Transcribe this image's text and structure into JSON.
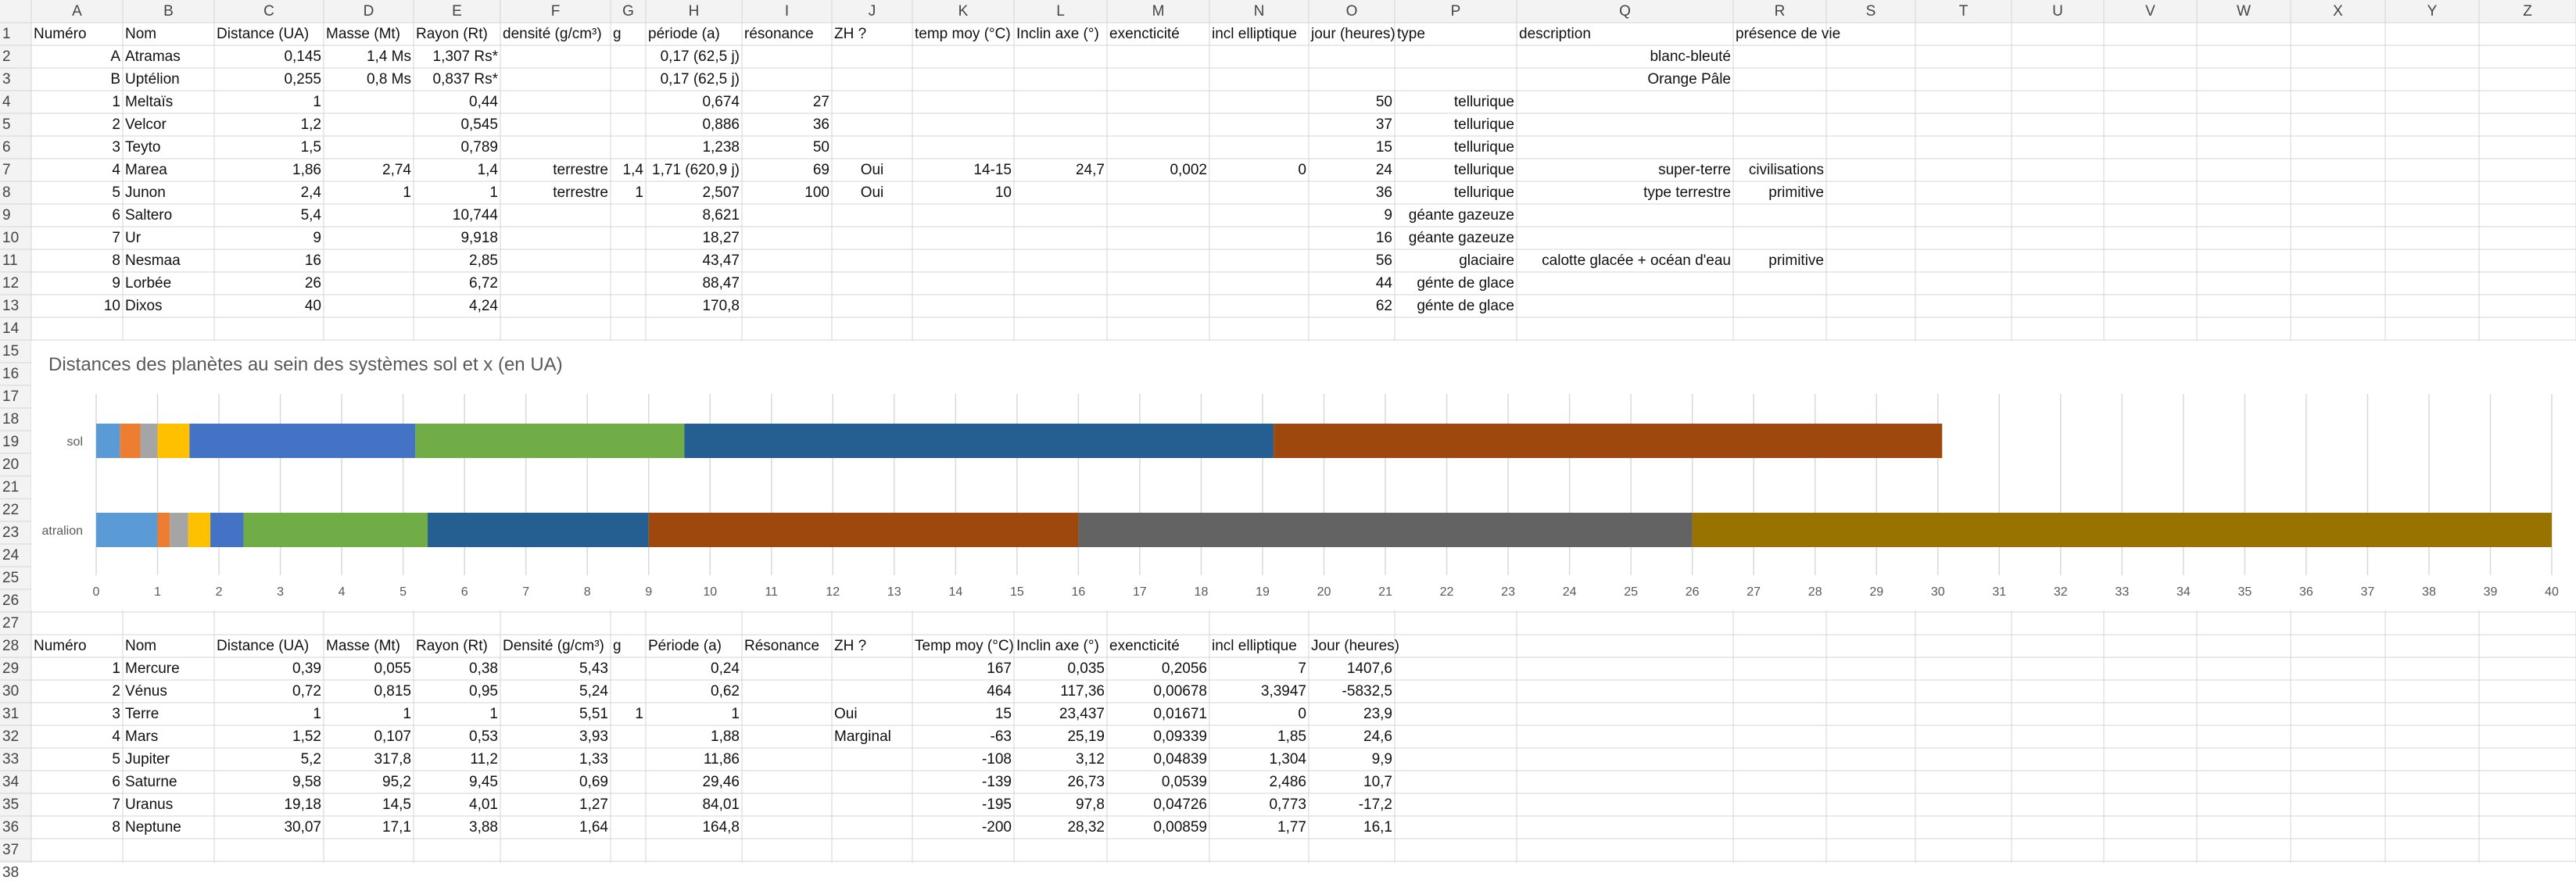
{
  "columns": [
    "A",
    "B",
    "C",
    "D",
    "E",
    "F",
    "G",
    "H",
    "I",
    "J",
    "K",
    "L",
    "M",
    "N",
    "O",
    "P",
    "Q",
    "R",
    "S",
    "T",
    "U",
    "V",
    "W",
    "X",
    "Y",
    "Z"
  ],
  "row_count": 38,
  "cells": [
    {
      "ref": "A1",
      "v": "Numéro",
      "a": "l"
    },
    {
      "ref": "B1",
      "v": "Nom",
      "a": "l"
    },
    {
      "ref": "C1",
      "v": "Distance (UA)",
      "a": "l"
    },
    {
      "ref": "D1",
      "v": "Masse (Mt)",
      "a": "l"
    },
    {
      "ref": "E1",
      "v": "Rayon (Rt)",
      "a": "l"
    },
    {
      "ref": "F1",
      "v": "densité (g/cm³)",
      "a": "l"
    },
    {
      "ref": "G1",
      "v": "g",
      "a": "l"
    },
    {
      "ref": "H1",
      "v": "période (a)",
      "a": "l"
    },
    {
      "ref": "I1",
      "v": "résonance",
      "a": "l"
    },
    {
      "ref": "J1",
      "v": "ZH ?",
      "a": "l"
    },
    {
      "ref": "K1",
      "v": "temp moy (°C)",
      "a": "l"
    },
    {
      "ref": "L1",
      "v": "Inclin axe (°)",
      "a": "l"
    },
    {
      "ref": "M1",
      "v": "exencticité",
      "a": "l"
    },
    {
      "ref": "N1",
      "v": "incl elliptique",
      "a": "l"
    },
    {
      "ref": "O1",
      "v": "jour (heures)",
      "a": "l"
    },
    {
      "ref": "P1",
      "v": "type",
      "a": "l"
    },
    {
      "ref": "Q1",
      "v": "description",
      "a": "l"
    },
    {
      "ref": "R1",
      "v": "présence de vie",
      "a": "l"
    },
    {
      "ref": "A2",
      "v": "A",
      "a": "r"
    },
    {
      "ref": "B2",
      "v": "Atramas",
      "a": "l"
    },
    {
      "ref": "C2",
      "v": "0,145",
      "a": "r"
    },
    {
      "ref": "D2",
      "v": "1,4 Ms",
      "a": "r"
    },
    {
      "ref": "E2",
      "v": "1,307 Rs*",
      "a": "r"
    },
    {
      "ref": "H2",
      "v": "0,17 (62,5 j)",
      "a": "r"
    },
    {
      "ref": "Q2",
      "v": "blanc-bleuté",
      "a": "r"
    },
    {
      "ref": "A3",
      "v": "B",
      "a": "r"
    },
    {
      "ref": "B3",
      "v": "Uptélion",
      "a": "l"
    },
    {
      "ref": "C3",
      "v": "0,255",
      "a": "r"
    },
    {
      "ref": "D3",
      "v": "0,8 Ms",
      "a": "r"
    },
    {
      "ref": "E3",
      "v": "0,837 Rs*",
      "a": "r"
    },
    {
      "ref": "H3",
      "v": "0,17 (62,5 j)",
      "a": "r"
    },
    {
      "ref": "Q3",
      "v": "Orange Pâle",
      "a": "r"
    },
    {
      "ref": "A4",
      "v": "1",
      "a": "r"
    },
    {
      "ref": "B4",
      "v": "Meltaïs",
      "a": "l"
    },
    {
      "ref": "C4",
      "v": "1",
      "a": "r"
    },
    {
      "ref": "E4",
      "v": "0,44",
      "a": "r"
    },
    {
      "ref": "H4",
      "v": "0,674",
      "a": "r"
    },
    {
      "ref": "I4",
      "v": "27",
      "a": "r"
    },
    {
      "ref": "O4",
      "v": "50",
      "a": "r"
    },
    {
      "ref": "P4",
      "v": "tellurique",
      "a": "r"
    },
    {
      "ref": "A5",
      "v": "2",
      "a": "r"
    },
    {
      "ref": "B5",
      "v": "Velcor",
      "a": "l"
    },
    {
      "ref": "C5",
      "v": "1,2",
      "a": "r"
    },
    {
      "ref": "E5",
      "v": "0,545",
      "a": "r"
    },
    {
      "ref": "H5",
      "v": "0,886",
      "a": "r"
    },
    {
      "ref": "I5",
      "v": "36",
      "a": "r"
    },
    {
      "ref": "O5",
      "v": "37",
      "a": "r"
    },
    {
      "ref": "P5",
      "v": "tellurique",
      "a": "r"
    },
    {
      "ref": "A6",
      "v": "3",
      "a": "r"
    },
    {
      "ref": "B6",
      "v": "Teyto",
      "a": "l"
    },
    {
      "ref": "C6",
      "v": "1,5",
      "a": "r"
    },
    {
      "ref": "E6",
      "v": "0,789",
      "a": "r"
    },
    {
      "ref": "H6",
      "v": "1,238",
      "a": "r"
    },
    {
      "ref": "I6",
      "v": "50",
      "a": "r"
    },
    {
      "ref": "O6",
      "v": "15",
      "a": "r"
    },
    {
      "ref": "P6",
      "v": "tellurique",
      "a": "r"
    },
    {
      "ref": "A7",
      "v": "4",
      "a": "r"
    },
    {
      "ref": "B7",
      "v": "Marea",
      "a": "l"
    },
    {
      "ref": "C7",
      "v": "1,86",
      "a": "r"
    },
    {
      "ref": "D7",
      "v": "2,74",
      "a": "r"
    },
    {
      "ref": "E7",
      "v": "1,4",
      "a": "r"
    },
    {
      "ref": "F7",
      "v": "terrestre",
      "a": "r"
    },
    {
      "ref": "G7",
      "v": "1,4",
      "a": "r"
    },
    {
      "ref": "H7",
      "v": "1,71 (620,9 j)",
      "a": "r"
    },
    {
      "ref": "I7",
      "v": "69",
      "a": "r"
    },
    {
      "ref": "J7",
      "v": "Oui",
      "a": "c"
    },
    {
      "ref": "K7",
      "v": "14-15",
      "a": "r"
    },
    {
      "ref": "L7",
      "v": "24,7",
      "a": "r"
    },
    {
      "ref": "M7",
      "v": "0,002",
      "a": "r"
    },
    {
      "ref": "N7",
      "v": "0",
      "a": "r"
    },
    {
      "ref": "O7",
      "v": "24",
      "a": "r"
    },
    {
      "ref": "P7",
      "v": "tellurique",
      "a": "r"
    },
    {
      "ref": "Q7",
      "v": "super-terre",
      "a": "r"
    },
    {
      "ref": "R7",
      "v": "civilisations",
      "a": "r"
    },
    {
      "ref": "A8",
      "v": "5",
      "a": "r"
    },
    {
      "ref": "B8",
      "v": "Junon",
      "a": "l"
    },
    {
      "ref": "C8",
      "v": "2,4",
      "a": "r"
    },
    {
      "ref": "D8",
      "v": "1",
      "a": "r"
    },
    {
      "ref": "E8",
      "v": "1",
      "a": "r"
    },
    {
      "ref": "F8",
      "v": "terrestre",
      "a": "r"
    },
    {
      "ref": "G8",
      "v": "1",
      "a": "r"
    },
    {
      "ref": "H8",
      "v": "2,507",
      "a": "r"
    },
    {
      "ref": "I8",
      "v": "100",
      "a": "r"
    },
    {
      "ref": "J8",
      "v": "Oui",
      "a": "c"
    },
    {
      "ref": "K8",
      "v": "10",
      "a": "r"
    },
    {
      "ref": "O8",
      "v": "36",
      "a": "r"
    },
    {
      "ref": "P8",
      "v": "tellurique",
      "a": "r"
    },
    {
      "ref": "Q8",
      "v": "type terrestre",
      "a": "r"
    },
    {
      "ref": "R8",
      "v": "primitive",
      "a": "r"
    },
    {
      "ref": "A9",
      "v": "6",
      "a": "r"
    },
    {
      "ref": "B9",
      "v": "Saltero",
      "a": "l"
    },
    {
      "ref": "C9",
      "v": "5,4",
      "a": "r"
    },
    {
      "ref": "E9",
      "v": "10,744",
      "a": "r"
    },
    {
      "ref": "H9",
      "v": "8,621",
      "a": "r"
    },
    {
      "ref": "O9",
      "v": "9",
      "a": "r"
    },
    {
      "ref": "P9",
      "v": "géante gazeuze",
      "a": "r"
    },
    {
      "ref": "A10",
      "v": "7",
      "a": "r"
    },
    {
      "ref": "B10",
      "v": "Ur",
      "a": "l"
    },
    {
      "ref": "C10",
      "v": "9",
      "a": "r"
    },
    {
      "ref": "E10",
      "v": "9,918",
      "a": "r"
    },
    {
      "ref": "H10",
      "v": "18,27",
      "a": "r"
    },
    {
      "ref": "O10",
      "v": "16",
      "a": "r"
    },
    {
      "ref": "P10",
      "v": "géante gazeuze",
      "a": "r"
    },
    {
      "ref": "A11",
      "v": "8",
      "a": "r"
    },
    {
      "ref": "B11",
      "v": "Nesmaa",
      "a": "l"
    },
    {
      "ref": "C11",
      "v": "16",
      "a": "r"
    },
    {
      "ref": "E11",
      "v": "2,85",
      "a": "r"
    },
    {
      "ref": "H11",
      "v": "43,47",
      "a": "r"
    },
    {
      "ref": "O11",
      "v": "56",
      "a": "r"
    },
    {
      "ref": "P11",
      "v": "glaciaire",
      "a": "r"
    },
    {
      "ref": "Q11",
      "v": "calotte glacée + océan d'eau",
      "a": "r"
    },
    {
      "ref": "R11",
      "v": "primitive",
      "a": "r"
    },
    {
      "ref": "A12",
      "v": "9",
      "a": "r"
    },
    {
      "ref": "B12",
      "v": "Lorbée",
      "a": "l"
    },
    {
      "ref": "C12",
      "v": "26",
      "a": "r"
    },
    {
      "ref": "E12",
      "v": "6,72",
      "a": "r"
    },
    {
      "ref": "H12",
      "v": "88,47",
      "a": "r"
    },
    {
      "ref": "O12",
      "v": "44",
      "a": "r"
    },
    {
      "ref": "P12",
      "v": "génte de glace",
      "a": "r"
    },
    {
      "ref": "A13",
      "v": "10",
      "a": "r"
    },
    {
      "ref": "B13",
      "v": "Dixos",
      "a": "l"
    },
    {
      "ref": "C13",
      "v": "40",
      "a": "r"
    },
    {
      "ref": "E13",
      "v": "4,24",
      "a": "r"
    },
    {
      "ref": "H13",
      "v": "170,8",
      "a": "r"
    },
    {
      "ref": "O13",
      "v": "62",
      "a": "r"
    },
    {
      "ref": "P13",
      "v": "génte de glace",
      "a": "r"
    },
    {
      "ref": "A28",
      "v": "Numéro",
      "a": "l"
    },
    {
      "ref": "B28",
      "v": "Nom",
      "a": "l"
    },
    {
      "ref": "C28",
      "v": "Distance (UA)",
      "a": "l"
    },
    {
      "ref": "D28",
      "v": "Masse (Mt)",
      "a": "l"
    },
    {
      "ref": "E28",
      "v": "Rayon (Rt)",
      "a": "l"
    },
    {
      "ref": "F28",
      "v": "Densité (g/cm³)",
      "a": "l"
    },
    {
      "ref": "G28",
      "v": "g",
      "a": "l"
    },
    {
      "ref": "H28",
      "v": "Période (a)",
      "a": "l"
    },
    {
      "ref": "I28",
      "v": "Résonance",
      "a": "l"
    },
    {
      "ref": "J28",
      "v": "ZH ?",
      "a": "l"
    },
    {
      "ref": "K28",
      "v": "Temp moy (°C)",
      "a": "l"
    },
    {
      "ref": "L28",
      "v": "Inclin axe (°)",
      "a": "l"
    },
    {
      "ref": "M28",
      "v": "exencticité",
      "a": "l"
    },
    {
      "ref": "N28",
      "v": "incl elliptique",
      "a": "l"
    },
    {
      "ref": "O28",
      "v": "Jour (heures)",
      "a": "l"
    },
    {
      "ref": "A29",
      "v": "1",
      "a": "r"
    },
    {
      "ref": "B29",
      "v": "Mercure",
      "a": "l"
    },
    {
      "ref": "C29",
      "v": "0,39",
      "a": "r"
    },
    {
      "ref": "D29",
      "v": "0,055",
      "a": "r"
    },
    {
      "ref": "E29",
      "v": "0,38",
      "a": "r"
    },
    {
      "ref": "F29",
      "v": "5,43",
      "a": "r"
    },
    {
      "ref": "H29",
      "v": "0,24",
      "a": "r"
    },
    {
      "ref": "K29",
      "v": "167",
      "a": "r"
    },
    {
      "ref": "L29",
      "v": "0,035",
      "a": "r"
    },
    {
      "ref": "M29",
      "v": "0,2056",
      "a": "r"
    },
    {
      "ref": "N29",
      "v": "7",
      "a": "r"
    },
    {
      "ref": "O29",
      "v": "1407,6",
      "a": "r"
    },
    {
      "ref": "A30",
      "v": "2",
      "a": "r"
    },
    {
      "ref": "B30",
      "v": "Vénus",
      "a": "l"
    },
    {
      "ref": "C30",
      "v": "0,72",
      "a": "r"
    },
    {
      "ref": "D30",
      "v": "0,815",
      "a": "r"
    },
    {
      "ref": "E30",
      "v": "0,95",
      "a": "r"
    },
    {
      "ref": "F30",
      "v": "5,24",
      "a": "r"
    },
    {
      "ref": "H30",
      "v": "0,62",
      "a": "r"
    },
    {
      "ref": "K30",
      "v": "464",
      "a": "r"
    },
    {
      "ref": "L30",
      "v": "117,36",
      "a": "r"
    },
    {
      "ref": "M30",
      "v": "0,00678",
      "a": "r"
    },
    {
      "ref": "N30",
      "v": "3,3947",
      "a": "r"
    },
    {
      "ref": "O30",
      "v": "-5832,5",
      "a": "r"
    },
    {
      "ref": "A31",
      "v": "3",
      "a": "r"
    },
    {
      "ref": "B31",
      "v": "Terre",
      "a": "l"
    },
    {
      "ref": "C31",
      "v": "1",
      "a": "r"
    },
    {
      "ref": "D31",
      "v": "1",
      "a": "r"
    },
    {
      "ref": "E31",
      "v": "1",
      "a": "r"
    },
    {
      "ref": "F31",
      "v": "5,51",
      "a": "r"
    },
    {
      "ref": "G31",
      "v": "1",
      "a": "r"
    },
    {
      "ref": "H31",
      "v": "1",
      "a": "r"
    },
    {
      "ref": "J31",
      "v": "Oui",
      "a": "l"
    },
    {
      "ref": "K31",
      "v": "15",
      "a": "r"
    },
    {
      "ref": "L31",
      "v": "23,437",
      "a": "r"
    },
    {
      "ref": "M31",
      "v": "0,01671",
      "a": "r"
    },
    {
      "ref": "N31",
      "v": "0",
      "a": "r"
    },
    {
      "ref": "O31",
      "v": "23,9",
      "a": "r"
    },
    {
      "ref": "A32",
      "v": "4",
      "a": "r"
    },
    {
      "ref": "B32",
      "v": "Mars",
      "a": "l"
    },
    {
      "ref": "C32",
      "v": "1,52",
      "a": "r"
    },
    {
      "ref": "D32",
      "v": "0,107",
      "a": "r"
    },
    {
      "ref": "E32",
      "v": "0,53",
      "a": "r"
    },
    {
      "ref": "F32",
      "v": "3,93",
      "a": "r"
    },
    {
      "ref": "H32",
      "v": "1,88",
      "a": "r"
    },
    {
      "ref": "J32",
      "v": "Marginal",
      "a": "l"
    },
    {
      "ref": "K32",
      "v": "-63",
      "a": "r"
    },
    {
      "ref": "L32",
      "v": "25,19",
      "a": "r"
    },
    {
      "ref": "M32",
      "v": "0,09339",
      "a": "r"
    },
    {
      "ref": "N32",
      "v": "1,85",
      "a": "r"
    },
    {
      "ref": "O32",
      "v": "24,6",
      "a": "r"
    },
    {
      "ref": "A33",
      "v": "5",
      "a": "r"
    },
    {
      "ref": "B33",
      "v": "Jupiter",
      "a": "l"
    },
    {
      "ref": "C33",
      "v": "5,2",
      "a": "r"
    },
    {
      "ref": "D33",
      "v": "317,8",
      "a": "r"
    },
    {
      "ref": "E33",
      "v": "11,2",
      "a": "r"
    },
    {
      "ref": "F33",
      "v": "1,33",
      "a": "r"
    },
    {
      "ref": "H33",
      "v": "11,86",
      "a": "r"
    },
    {
      "ref": "K33",
      "v": "-108",
      "a": "r"
    },
    {
      "ref": "L33",
      "v": "3,12",
      "a": "r"
    },
    {
      "ref": "M33",
      "v": "0,04839",
      "a": "r"
    },
    {
      "ref": "N33",
      "v": "1,304",
      "a": "r"
    },
    {
      "ref": "O33",
      "v": "9,9",
      "a": "r"
    },
    {
      "ref": "A34",
      "v": "6",
      "a": "r"
    },
    {
      "ref": "B34",
      "v": "Saturne",
      "a": "l"
    },
    {
      "ref": "C34",
      "v": "9,58",
      "a": "r"
    },
    {
      "ref": "D34",
      "v": "95,2",
      "a": "r"
    },
    {
      "ref": "E34",
      "v": "9,45",
      "a": "r"
    },
    {
      "ref": "F34",
      "v": "0,69",
      "a": "r"
    },
    {
      "ref": "H34",
      "v": "29,46",
      "a": "r"
    },
    {
      "ref": "K34",
      "v": "-139",
      "a": "r"
    },
    {
      "ref": "L34",
      "v": "26,73",
      "a": "r"
    },
    {
      "ref": "M34",
      "v": "0,0539",
      "a": "r"
    },
    {
      "ref": "N34",
      "v": "2,486",
      "a": "r"
    },
    {
      "ref": "O34",
      "v": "10,7",
      "a": "r"
    },
    {
      "ref": "A35",
      "v": "7",
      "a": "r"
    },
    {
      "ref": "B35",
      "v": "Uranus",
      "a": "l"
    },
    {
      "ref": "C35",
      "v": "19,18",
      "a": "r"
    },
    {
      "ref": "D35",
      "v": "14,5",
      "a": "r"
    },
    {
      "ref": "E35",
      "v": "4,01",
      "a": "r"
    },
    {
      "ref": "F35",
      "v": "1,27",
      "a": "r"
    },
    {
      "ref": "H35",
      "v": "84,01",
      "a": "r"
    },
    {
      "ref": "K35",
      "v": "-195",
      "a": "r"
    },
    {
      "ref": "L35",
      "v": "97,8",
      "a": "r"
    },
    {
      "ref": "M35",
      "v": "0,04726",
      "a": "r"
    },
    {
      "ref": "N35",
      "v": "0,773",
      "a": "r"
    },
    {
      "ref": "O35",
      "v": "-17,2",
      "a": "r"
    },
    {
      "ref": "A36",
      "v": "8",
      "a": "r"
    },
    {
      "ref": "B36",
      "v": "Neptune",
      "a": "l"
    },
    {
      "ref": "C36",
      "v": "30,07",
      "a": "r"
    },
    {
      "ref": "D36",
      "v": "17,1",
      "a": "r"
    },
    {
      "ref": "E36",
      "v": "3,88",
      "a": "r"
    },
    {
      "ref": "F36",
      "v": "1,64",
      "a": "r"
    },
    {
      "ref": "H36",
      "v": "164,8",
      "a": "r"
    },
    {
      "ref": "K36",
      "v": "-200",
      "a": "r"
    },
    {
      "ref": "L36",
      "v": "28,32",
      "a": "r"
    },
    {
      "ref": "M36",
      "v": "0,00859",
      "a": "r"
    },
    {
      "ref": "N36",
      "v": "1,77",
      "a": "r"
    },
    {
      "ref": "O36",
      "v": "16,1",
      "a": "r"
    }
  ],
  "chart_data": {
    "type": "bar",
    "orientation": "horizontal",
    "stacked": true,
    "title": "Distances des planètes au sein des systèmes sol et x (en UA)",
    "categories": [
      "sol",
      "atralion"
    ],
    "xlim": [
      0,
      40
    ],
    "x_ticks": [
      0,
      1,
      2,
      3,
      4,
      5,
      6,
      7,
      8,
      9,
      10,
      11,
      12,
      13,
      14,
      15,
      16,
      17,
      18,
      19,
      20,
      21,
      22,
      23,
      24,
      25,
      26,
      27,
      28,
      29,
      30,
      31,
      32,
      33,
      34,
      35,
      36,
      37,
      38,
      39,
      40
    ],
    "grid": true,
    "legend": "none",
    "series": [
      {
        "category": "sol",
        "ends": [
          0.39,
          0.72,
          1,
          1.52,
          5.2,
          9.58,
          19.18,
          30.07
        ],
        "colors": [
          "#5b9bd5",
          "#ed7d31",
          "#a5a5a5",
          "#ffc000",
          "#4472c4",
          "#70ad47",
          "#255e91",
          "#9e480e"
        ]
      },
      {
        "category": "atralion",
        "ends": [
          1,
          1.2,
          1.5,
          1.86,
          2.4,
          5.4,
          9,
          16,
          26,
          40
        ],
        "colors": [
          "#5b9bd5",
          "#ed7d31",
          "#a5a5a5",
          "#ffc000",
          "#4472c4",
          "#70ad47",
          "#255e91",
          "#9e480e",
          "#636363",
          "#997300"
        ]
      }
    ]
  },
  "colors": {
    "header_bg": "#f3f3f3",
    "gridline": "#d4d4d4",
    "chart_gridline": "#d9d9d9"
  }
}
